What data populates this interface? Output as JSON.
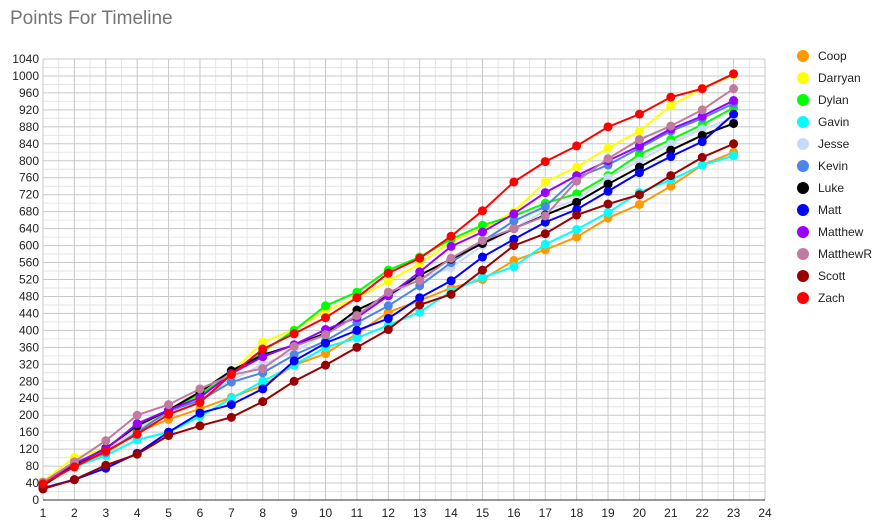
{
  "chart_data": {
    "type": "line",
    "title": "Points For Timeline",
    "xlabel": "",
    "ylabel": "",
    "x": [
      1,
      2,
      3,
      4,
      5,
      6,
      7,
      8,
      9,
      10,
      11,
      12,
      13,
      14,
      15,
      16,
      17,
      18,
      19,
      20,
      21,
      22,
      23
    ],
    "xlim": [
      1,
      24
    ],
    "ylim": [
      0,
      1040
    ],
    "y_ticks": [
      0,
      40,
      80,
      120,
      160,
      200,
      240,
      280,
      320,
      360,
      400,
      440,
      480,
      520,
      560,
      600,
      640,
      680,
      720,
      760,
      800,
      840,
      880,
      920,
      960,
      1000,
      1040
    ],
    "x_ticks": [
      1,
      2,
      3,
      4,
      5,
      6,
      7,
      8,
      9,
      10,
      11,
      12,
      13,
      14,
      15,
      16,
      17,
      18,
      19,
      20,
      21,
      22,
      23,
      24
    ],
    "grid": true,
    "legend_position": "right",
    "series": [
      {
        "name": "Coop",
        "color": "#ff9900",
        "values": [
          38,
          82,
          110,
          160,
          190,
          215,
          242,
          270,
          318,
          345,
          392,
          443,
          470,
          500,
          520,
          565,
          590,
          620,
          665,
          697,
          740,
          790,
          820
        ]
      },
      {
        "name": "Darryan",
        "color": "#ffff00",
        "values": [
          44,
          100,
          120,
          170,
          210,
          245,
          300,
          372,
          402,
          446,
          477,
          516,
          558,
          610,
          640,
          680,
          750,
          785,
          830,
          870,
          930,
          970,
          1003
        ]
      },
      {
        "name": "Dylan",
        "color": "#00ff00",
        "values": [
          36,
          85,
          122,
          175,
          212,
          250,
          295,
          350,
          400,
          458,
          490,
          542,
          573,
          615,
          648,
          670,
          700,
          722,
          765,
          815,
          850,
          885,
          925
        ]
      },
      {
        "name": "Gavin",
        "color": "#00ffff",
        "values": [
          40,
          78,
          105,
          142,
          160,
          197,
          240,
          280,
          318,
          360,
          382,
          412,
          443,
          492,
          525,
          550,
          603,
          638,
          678,
          725,
          755,
          790,
          812
        ]
      },
      {
        "name": "Jesse",
        "color": "#c9daf8",
        "values": [
          42,
          88,
          118,
          168,
          205,
          240,
          282,
          320,
          350,
          390,
          440,
          478,
          522,
          548,
          600,
          640,
          682,
          708,
          760,
          800,
          840,
          875,
          900
        ]
      },
      {
        "name": "Kevin",
        "color": "#4a86e8",
        "values": [
          34,
          82,
          112,
          160,
          210,
          235,
          278,
          300,
          342,
          375,
          418,
          458,
          505,
          560,
          610,
          658,
          692,
          760,
          790,
          830,
          870,
          900,
          935
        ]
      },
      {
        "name": "Luke",
        "color": "#000000",
        "values": [
          34,
          82,
          122,
          175,
          212,
          255,
          305,
          342,
          365,
          393,
          448,
          482,
          530,
          568,
          605,
          640,
          672,
          702,
          745,
          785,
          825,
          860,
          888
        ]
      },
      {
        "name": "Matt",
        "color": "#0000ff",
        "values": [
          28,
          48,
          75,
          110,
          160,
          205,
          225,
          262,
          328,
          370,
          400,
          428,
          477,
          517,
          573,
          615,
          655,
          685,
          728,
          772,
          810,
          845,
          910
        ]
      },
      {
        "name": "Matthew",
        "color": "#9900ff",
        "values": [
          40,
          86,
          120,
          180,
          212,
          242,
          298,
          338,
          366,
          402,
          430,
          482,
          538,
          598,
          632,
          675,
          725,
          765,
          800,
          835,
          875,
          905,
          942
        ]
      },
      {
        "name": "MatthewR",
        "color": "#c27ba0",
        "values": [
          42,
          90,
          140,
          200,
          225,
          262,
          295,
          310,
          362,
          390,
          435,
          490,
          518,
          570,
          612,
          640,
          670,
          752,
          805,
          850,
          882,
          920,
          970
        ]
      },
      {
        "name": "Scott",
        "color": "#990000",
        "values": [
          26,
          48,
          82,
          108,
          152,
          175,
          195,
          232,
          280,
          318,
          360,
          402,
          460,
          485,
          542,
          600,
          628,
          672,
          698,
          720,
          765,
          808,
          840
        ]
      },
      {
        "name": "Zach",
        "color": "#ff0000",
        "values": [
          38,
          78,
          115,
          155,
          202,
          230,
          296,
          356,
          392,
          430,
          477,
          535,
          570,
          622,
          682,
          750,
          798,
          835,
          880,
          910,
          950,
          970,
          1005
        ]
      }
    ]
  }
}
